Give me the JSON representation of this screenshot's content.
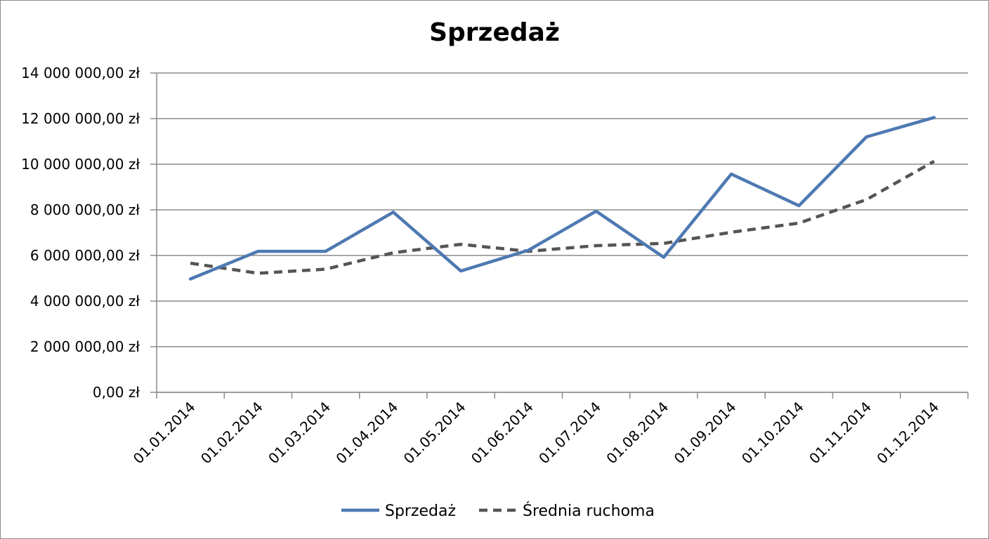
{
  "chart_data": {
    "type": "line",
    "title": "Sprzedaż",
    "xlabel": "",
    "ylabel": "",
    "x": [
      "01.01.2014",
      "01.02.2014",
      "01.03.2014",
      "01.04.2014",
      "01.05.2014",
      "01.06.2014",
      "01.07.2014",
      "01.08.2014",
      "01.09.2014",
      "01.10.2014",
      "01.11.2014",
      "01.12.2014"
    ],
    "ylim": [
      0,
      14000000
    ],
    "yticks": [
      0,
      2000000,
      4000000,
      6000000,
      8000000,
      10000000,
      12000000,
      14000000
    ],
    "ytick_labels": [
      "0,00 zł",
      "2 000 000,00 zł",
      "4 000 000,00 zł",
      "6 000 000,00 zł",
      "8 000 000,00 zł",
      "10 000 000,00 zł",
      "12 000 000,00 zł",
      "14 000 000,00 zł"
    ],
    "grid": true,
    "legend_position": "bottom",
    "series": [
      {
        "name": "Sprzedaż",
        "color": "#4e79b2",
        "dash": "solid",
        "values": [
          4970000,
          6180000,
          6180000,
          7900000,
          5320000,
          6230000,
          7940000,
          5920000,
          9570000,
          8180000,
          11200000,
          12050000
        ]
      },
      {
        "name": "Średnia ruchoma",
        "color": "#555555",
        "dash": "dashed",
        "values": [
          5660000,
          5220000,
          5400000,
          6120000,
          6490000,
          6180000,
          6430000,
          6530000,
          7020000,
          7420000,
          8450000,
          10130000
        ]
      }
    ]
  }
}
